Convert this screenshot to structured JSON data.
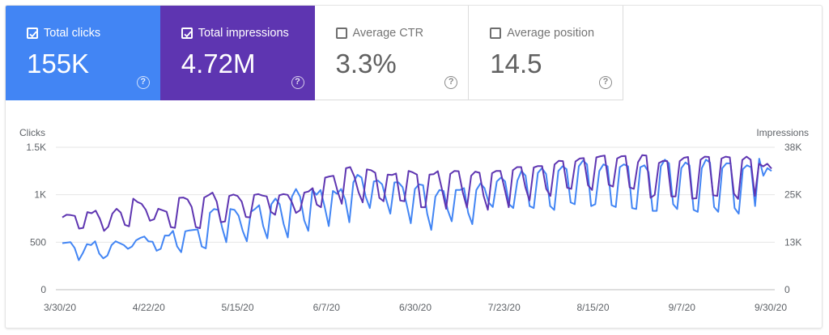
{
  "cards": [
    {
      "label": "Total clicks",
      "value": "155K",
      "checked": true,
      "color": "#4285f4"
    },
    {
      "label": "Total impressions",
      "value": "4.72M",
      "checked": true,
      "color": "#5e35b1"
    },
    {
      "label": "Average CTR",
      "value": "3.3%",
      "checked": false,
      "color": "#ffffff"
    },
    {
      "label": "Average position",
      "value": "14.5",
      "checked": false,
      "color": "#ffffff"
    }
  ],
  "help_glyph": "?",
  "chart_data": {
    "type": "line",
    "left_axis": {
      "label": "Clicks",
      "range": [
        0,
        1500
      ],
      "ticks": [
        "0",
        "500",
        "1K",
        "1.5K"
      ]
    },
    "right_axis": {
      "label": "Impressions",
      "range": [
        0,
        38000
      ],
      "ticks": [
        "0",
        "13K",
        "25K",
        "38K"
      ]
    },
    "x_ticks": [
      "3/30/20",
      "4/22/20",
      "5/15/20",
      "6/7/20",
      "6/30/20",
      "7/23/20",
      "8/15/20",
      "9/7/20",
      "9/30/20"
    ],
    "x_range": [
      "3/30/20",
      "9/30/20"
    ],
    "grid": true,
    "series": [
      {
        "name": "Clicks",
        "axis": "left",
        "color": "#4285f4",
        "values": [
          490,
          495,
          500,
          440,
          310,
          385,
          480,
          470,
          510,
          380,
          330,
          360,
          470,
          510,
          490,
          470,
          430,
          455,
          520,
          545,
          560,
          510,
          505,
          410,
          430,
          570,
          570,
          620,
          455,
          395,
          615,
          625,
          630,
          635,
          455,
          435,
          810,
          850,
          840,
          650,
          500,
          850,
          840,
          780,
          620,
          510,
          820,
          850,
          890,
          670,
          540,
          900,
          960,
          900,
          690,
          550,
          980,
          1060,
          980,
          730,
          620,
          1050,
          1000,
          1050,
          870,
          670,
          1040,
          1010,
          1060,
          950,
          710,
          1130,
          1210,
          1180,
          980,
          860,
          1140,
          1150,
          1110,
          950,
          800,
          1130,
          1130,
          1080,
          900,
          700,
          1060,
          1110,
          1100,
          800,
          630,
          980,
          1050,
          1040,
          840,
          720,
          1050,
          1050,
          1070,
          810,
          690,
          1050,
          1120,
          1070,
          920,
          870,
          1140,
          1180,
          1140,
          900,
          860,
          1150,
          1250,
          1200,
          880,
          860,
          1230,
          1280,
          1220,
          880,
          840,
          1250,
          1300,
          1270,
          920,
          900,
          1300,
          1360,
          1320,
          880,
          900,
          1250,
          1320,
          1300,
          890,
          870,
          1290,
          1320,
          1300,
          860,
          850,
          1290,
          1310,
          1240,
          830,
          830,
          1300,
          1370,
          1330,
          900,
          850,
          1280,
          1340,
          1310,
          840,
          820,
          1280,
          1370,
          1340,
          870,
          820,
          1280,
          1330,
          1330,
          860,
          800,
          1270,
          1310,
          1290,
          880,
          1380,
          1200,
          1280,
          1250
        ]
      },
      {
        "name": "Impressions",
        "axis": "right",
        "color": "#5e35b1",
        "values": [
          19300,
          20000,
          19900,
          19700,
          16300,
          16500,
          20700,
          20400,
          21100,
          18900,
          15700,
          16800,
          20300,
          21600,
          20600,
          17300,
          16900,
          24300,
          23400,
          22900,
          21300,
          18400,
          18800,
          21600,
          21200,
          20800,
          16700,
          16500,
          24500,
          24600,
          24100,
          22100,
          16700,
          16400,
          24600,
          25200,
          25900,
          23500,
          18000,
          18200,
          25000,
          25400,
          25000,
          23500,
          19400,
          19300,
          25300,
          25500,
          25100,
          24900,
          20800,
          20000,
          25200,
          25500,
          25300,
          23400,
          20500,
          21200,
          25900,
          26200,
          27100,
          22700,
          22000,
          29900,
          30200,
          30400,
          26200,
          22900,
          32400,
          32700,
          30200,
          26000,
          23300,
          32100,
          31900,
          31200,
          24500,
          23600,
          30700,
          30600,
          31000,
          23800,
          23600,
          31700,
          31300,
          30700,
          22000,
          22000,
          30700,
          30800,
          31600,
          26800,
          21600,
          30900,
          31700,
          31600,
          25900,
          21900,
          30400,
          31500,
          31200,
          25000,
          21300,
          31100,
          31700,
          31700,
          27000,
          22000,
          31900,
          32700,
          32700,
          27300,
          23800,
          32600,
          33000,
          33000,
          26900,
          25000,
          33400,
          34400,
          34300,
          27200,
          26900,
          34200,
          35000,
          35100,
          27900,
          26600,
          35300,
          35600,
          35800,
          28000,
          27500,
          35000,
          35600,
          35700,
          27300,
          26900,
          34000,
          35900,
          35800,
          24500,
          25300,
          33800,
          34400,
          34300,
          24900,
          24900,
          34300,
          35200,
          35400,
          24300,
          24400,
          34700,
          35500,
          35400,
          25200,
          25000,
          35000,
          35500,
          35300,
          25600,
          24200,
          34600,
          35500,
          34700,
          25000,
          33600,
          32900,
          33600,
          32300
        ]
      }
    ]
  }
}
